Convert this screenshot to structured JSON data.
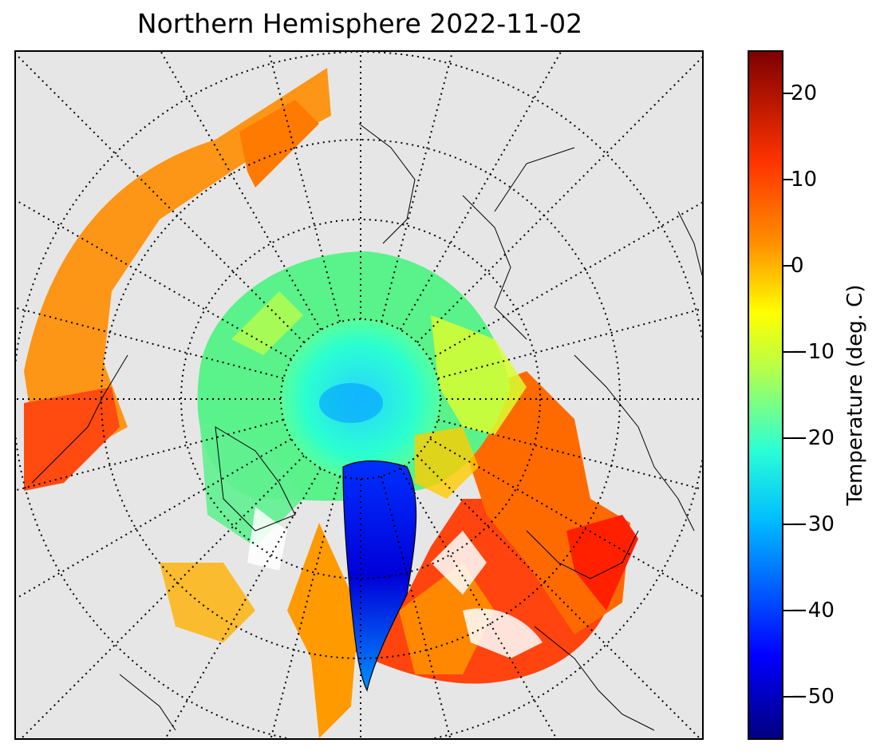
{
  "title": "Northern Hemisphere 2022-11-02",
  "map": {
    "projection": "north-polar-stereographic",
    "background_color": "#e6e6e6",
    "coastline_color": "#000000",
    "graticule_style": "dotted",
    "parallels": [
      50,
      60,
      70,
      80
    ],
    "meridian_step_deg": 15
  },
  "colorbar": {
    "label": "Temperature (deg. C)",
    "colormap": "jet",
    "min": -55,
    "max": 25,
    "ticks": [
      "20",
      "10",
      "0",
      "−10",
      "−20",
      "−30",
      "−40",
      "−50"
    ]
  }
}
